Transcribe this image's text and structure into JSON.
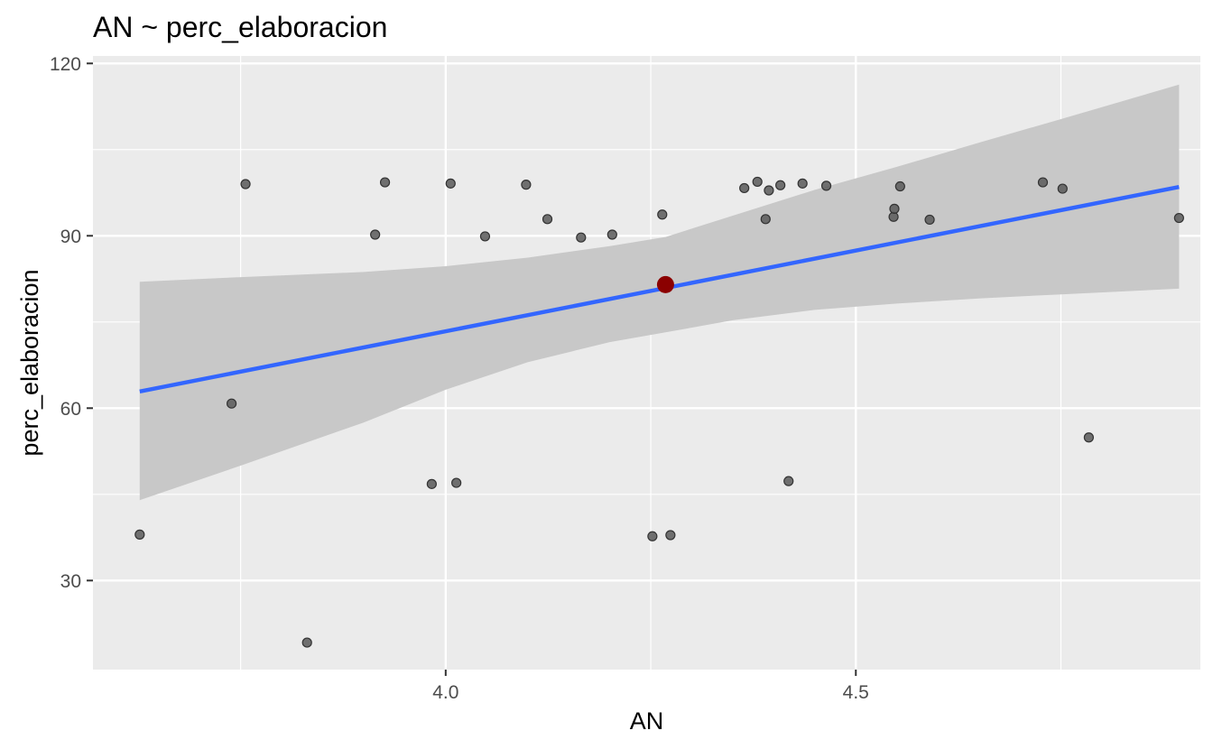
{
  "chart_data": {
    "type": "scatter",
    "title": "AN ~ perc_elaboracion",
    "xlabel": "AN",
    "ylabel": "perc_elaboracion",
    "xlim": [
      3.57,
      4.92
    ],
    "ylim": [
      14.5,
      121.3
    ],
    "x_ticks": [
      {
        "value": 4.0,
        "label": "4.0"
      },
      {
        "value": 4.5,
        "label": "4.5"
      }
    ],
    "y_ticks": [
      {
        "value": 30,
        "label": "30"
      },
      {
        "value": 60,
        "label": "60"
      },
      {
        "value": 90,
        "label": "90"
      },
      {
        "value": 120,
        "label": "120"
      }
    ],
    "x_minor": [
      3.75,
      4.25,
      4.75
    ],
    "y_minor": [
      45,
      75,
      105
    ],
    "grid": true,
    "points": [
      {
        "x": 3.627,
        "y": 38.0
      },
      {
        "x": 3.739,
        "y": 60.8
      },
      {
        "x": 3.756,
        "y": 99.0
      },
      {
        "x": 3.831,
        "y": 19.2
      },
      {
        "x": 3.914,
        "y": 90.2
      },
      {
        "x": 3.926,
        "y": 99.3
      },
      {
        "x": 3.983,
        "y": 46.8
      },
      {
        "x": 4.006,
        "y": 99.1
      },
      {
        "x": 4.013,
        "y": 47.0
      },
      {
        "x": 4.048,
        "y": 89.9
      },
      {
        "x": 4.098,
        "y": 98.9
      },
      {
        "x": 4.124,
        "y": 92.9
      },
      {
        "x": 4.165,
        "y": 89.7
      },
      {
        "x": 4.203,
        "y": 90.2
      },
      {
        "x": 4.252,
        "y": 37.7
      },
      {
        "x": 4.264,
        "y": 93.7
      },
      {
        "x": 4.274,
        "y": 37.9
      },
      {
        "x": 4.364,
        "y": 98.3
      },
      {
        "x": 4.38,
        "y": 99.4
      },
      {
        "x": 4.39,
        "y": 92.9
      },
      {
        "x": 4.394,
        "y": 97.9
      },
      {
        "x": 4.408,
        "y": 98.8
      },
      {
        "x": 4.418,
        "y": 47.3
      },
      {
        "x": 4.435,
        "y": 99.1
      },
      {
        "x": 4.464,
        "y": 98.7
      },
      {
        "x": 4.546,
        "y": 93.3
      },
      {
        "x": 4.547,
        "y": 94.7
      },
      {
        "x": 4.554,
        "y": 98.6
      },
      {
        "x": 4.59,
        "y": 92.8
      },
      {
        "x": 4.728,
        "y": 99.3
      },
      {
        "x": 4.752,
        "y": 98.2
      },
      {
        "x": 4.784,
        "y": 54.9
      },
      {
        "x": 4.894,
        "y": 93.1
      }
    ],
    "highlight_point": {
      "x": 4.268,
      "y": 81.5,
      "color": "#8b0000"
    },
    "fit_line": {
      "x": [
        3.627,
        4.894
      ],
      "y": [
        62.9,
        98.5
      ],
      "color": "#3366ff"
    },
    "confidence_band": [
      {
        "x": 3.627,
        "lo": 44.0,
        "hi": 82.0
      },
      {
        "x": 3.75,
        "lo": 50.0,
        "hi": 82.8
      },
      {
        "x": 3.9,
        "lo": 57.5,
        "hi": 83.7
      },
      {
        "x": 4.0,
        "lo": 63.2,
        "hi": 84.7
      },
      {
        "x": 4.1,
        "lo": 68.0,
        "hi": 86.2
      },
      {
        "x": 4.2,
        "lo": 71.5,
        "hi": 88.2
      },
      {
        "x": 4.268,
        "lo": 73.2,
        "hi": 89.8
      },
      {
        "x": 4.35,
        "lo": 75.3,
        "hi": 93.5
      },
      {
        "x": 4.45,
        "lo": 77.1,
        "hi": 98.0
      },
      {
        "x": 4.55,
        "lo": 78.2,
        "hi": 102.0
      },
      {
        "x": 4.65,
        "lo": 79.1,
        "hi": 106.2
      },
      {
        "x": 4.75,
        "lo": 79.8,
        "hi": 110.3
      },
      {
        "x": 4.894,
        "lo": 80.8,
        "hi": 116.3
      }
    ],
    "colors": {
      "panel": "#ebebeb",
      "grid": "#ffffff",
      "points": "#595959",
      "band": "#c8c8c8"
    }
  }
}
